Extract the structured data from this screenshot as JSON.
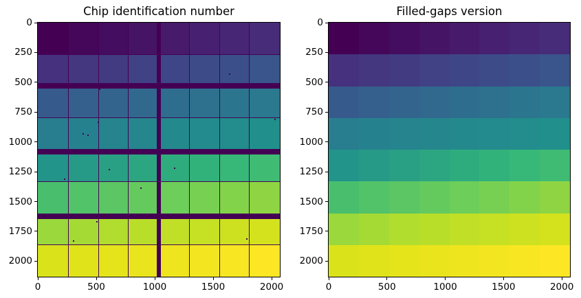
{
  "figure": {
    "background": "#ffffff",
    "text_color": "#000000"
  },
  "colormap": {
    "name": "viridis",
    "positions": [
      0.0,
      0.1,
      0.2,
      0.3,
      0.4,
      0.5,
      0.6,
      0.7,
      0.8,
      0.9,
      1.0
    ],
    "colors": [
      "#440154",
      "#482878",
      "#3e4989",
      "#31688e",
      "#26828e",
      "#21918c",
      "#35b779",
      "#6ece58",
      "#b5de2b",
      "#dfe318",
      "#fde725"
    ]
  },
  "chart_data": [
    {
      "type": "heatmap",
      "title": "Chip identification number",
      "xlabel": "",
      "ylabel": "",
      "x_ticks": [
        0,
        500,
        1000,
        1500,
        2000
      ],
      "y_ticks": [
        0,
        250,
        500,
        750,
        1000,
        1250,
        1500,
        1750,
        2000
      ],
      "x_max": 2070,
      "y_max": 2130,
      "rows": 8,
      "cols": 8,
      "vmin": 0,
      "vmax": 63,
      "values": [
        [
          0,
          1,
          2,
          3,
          4,
          5,
          6,
          7
        ],
        [
          8,
          9,
          10,
          11,
          12,
          13,
          14,
          15
        ],
        [
          16,
          17,
          18,
          19,
          20,
          21,
          22,
          23
        ],
        [
          24,
          25,
          26,
          27,
          28,
          29,
          30,
          31
        ],
        [
          32,
          33,
          34,
          35,
          36,
          37,
          38,
          39
        ],
        [
          40,
          41,
          42,
          43,
          44,
          45,
          46,
          47
        ],
        [
          48,
          49,
          50,
          51,
          52,
          53,
          54,
          55
        ],
        [
          56,
          57,
          58,
          59,
          60,
          61,
          62,
          63
        ]
      ],
      "gap_color": "#440154",
      "gaps": {
        "visible": true,
        "h_thin": [
          266,
          799,
          1331,
          1864
        ],
        "h_thick": [
          530,
          1080,
          1625
        ],
        "v_thin": [
          259,
          518,
          776,
          1294,
          1553,
          1811
        ],
        "v_thick": [
          1035
        ],
        "thick_h_width": 45,
        "thick_v_width": 40
      },
      "bad_pixels": [
        [
          335,
          75
        ],
        [
          1640,
          430
        ],
        [
          530,
          560
        ],
        [
          515,
          835
        ],
        [
          390,
          930
        ],
        [
          430,
          945
        ],
        [
          2030,
          810
        ],
        [
          610,
          1230
        ],
        [
          1170,
          1220
        ],
        [
          230,
          1310
        ],
        [
          880,
          1390
        ],
        [
          505,
          1670
        ],
        [
          305,
          1830
        ],
        [
          1790,
          1815
        ]
      ]
    },
    {
      "type": "heatmap",
      "title": "Filled-gaps version",
      "xlabel": "",
      "ylabel": "",
      "x_ticks": [
        0,
        500,
        1000,
        1500,
        2000
      ],
      "y_ticks": [
        0,
        250,
        500,
        750,
        1000,
        1250,
        1500,
        1750,
        2000
      ],
      "x_max": 2070,
      "y_max": 2130,
      "rows": 8,
      "cols": 8,
      "vmin": 0,
      "vmax": 63,
      "values": [
        [
          0,
          1,
          2,
          3,
          4,
          5,
          6,
          7
        ],
        [
          8,
          9,
          10,
          11,
          12,
          13,
          14,
          15
        ],
        [
          16,
          17,
          18,
          19,
          20,
          21,
          22,
          23
        ],
        [
          24,
          25,
          26,
          27,
          28,
          29,
          30,
          31
        ],
        [
          32,
          33,
          34,
          35,
          36,
          37,
          38,
          39
        ],
        [
          40,
          41,
          42,
          43,
          44,
          45,
          46,
          47
        ],
        [
          48,
          49,
          50,
          51,
          52,
          53,
          54,
          55
        ],
        [
          56,
          57,
          58,
          59,
          60,
          61,
          62,
          63
        ]
      ],
      "gap_color": "#440154",
      "gaps": {
        "visible": false
      },
      "bad_pixels": []
    }
  ]
}
